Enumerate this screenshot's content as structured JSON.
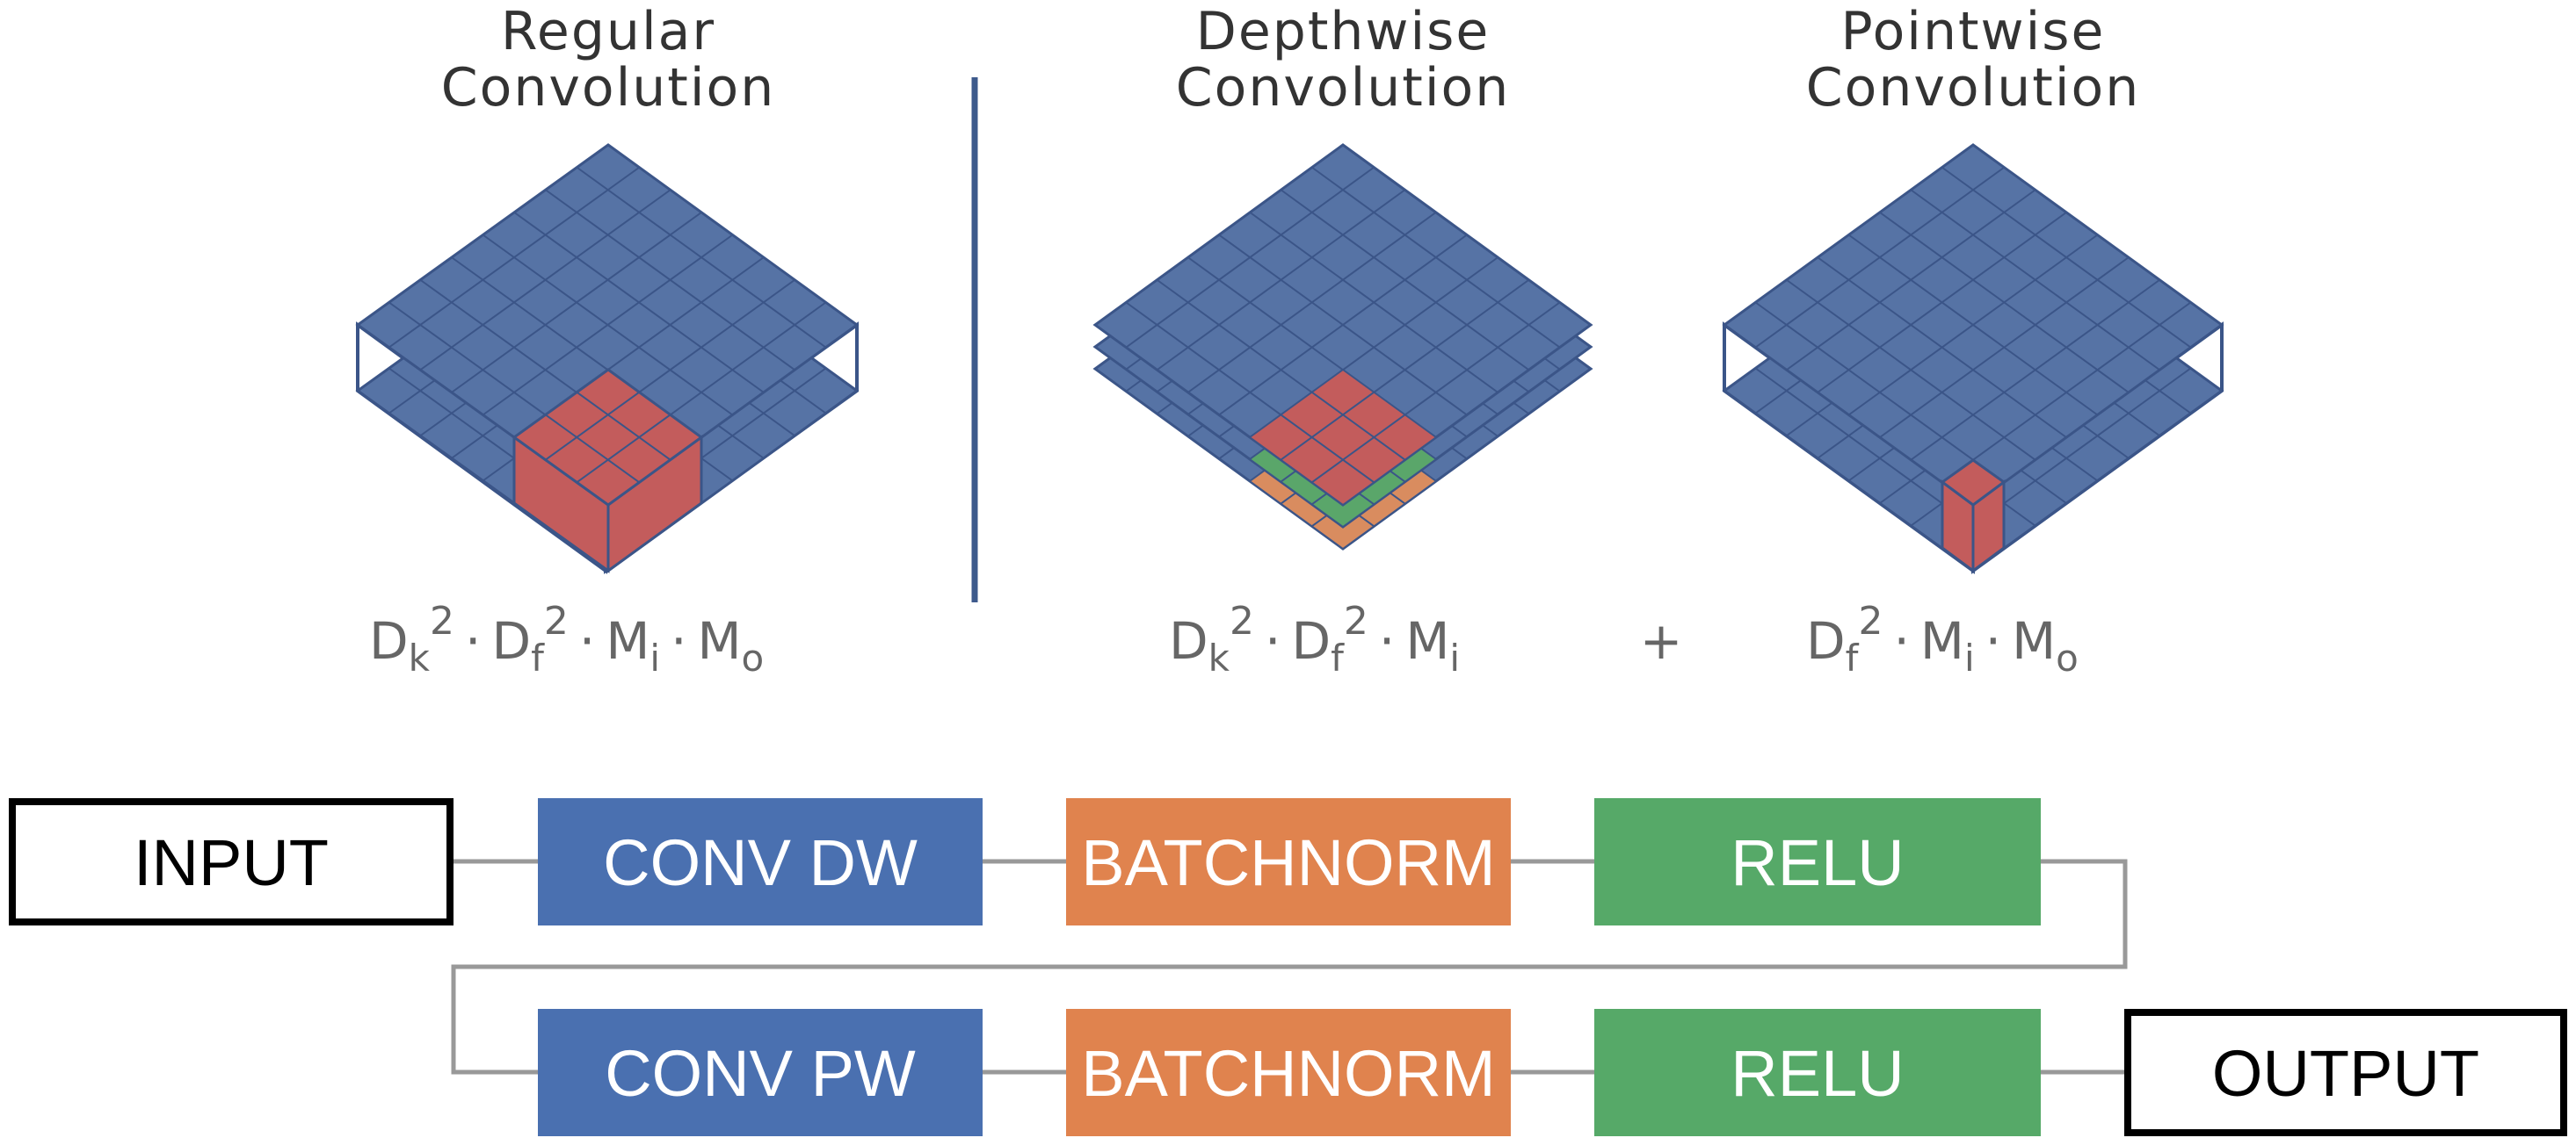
{
  "colors": {
    "layer_blue": "#5673a5",
    "grid_line": "#3b5588",
    "kernel_red": "#c35c5c",
    "green": "#5aa66a",
    "orange": "#d98c5f",
    "conv_blue": "#4a70b0",
    "batchnorm_orange": "#e0834e",
    "relu_green": "#56a968",
    "connector_gray": "#999999",
    "divider": "#3d5a8c"
  },
  "titles": {
    "regular": [
      "Regular",
      "Convolution"
    ],
    "depthwise": [
      "Depthwise",
      "Convolution"
    ],
    "pointwise": [
      "Pointwise",
      "Convolution"
    ]
  },
  "formulas": {
    "regular": {
      "D1": "D",
      "k": "k",
      "exp1": "2",
      "dot1": "·",
      "D2": "D",
      "f": "f",
      "exp2": "2",
      "dot2": "·",
      "M1": "M",
      "i": "i",
      "dot3": "·",
      "M2": "M",
      "o": "o"
    },
    "depthwise": {
      "D1": "D",
      "k": "k",
      "exp1": "2",
      "dot1": "·",
      "D2": "D",
      "f": "f",
      "exp2": "2",
      "dot2": "·",
      "M1": "M",
      "i": "i"
    },
    "plus": "+",
    "pointwise": {
      "D2": "D",
      "f": "f",
      "exp2": "2",
      "dot2": "·",
      "M1": "M",
      "i": "i",
      "dot3": "·",
      "M2": "M",
      "o": "o"
    }
  },
  "pipeline": {
    "input": "INPUT",
    "output": "OUTPUT",
    "row1": [
      "CONV DW",
      "BATCHNORM",
      "RELU"
    ],
    "row2": [
      "CONV PW",
      "BATCHNORM",
      "RELU"
    ]
  }
}
